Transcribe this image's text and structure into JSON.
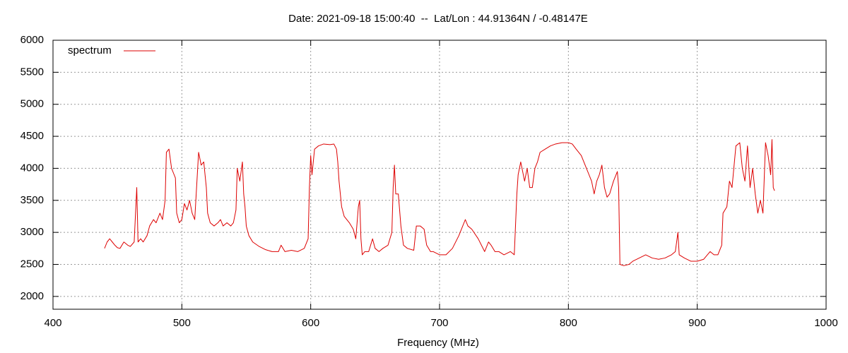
{
  "chart_data": {
    "type": "line",
    "title": "Date: 2021-09-18 15:00:40  --  Lat/Lon : 44.91364N / -0.48147E",
    "x_label": "Frequency (MHz)",
    "xlim": [
      400,
      1000
    ],
    "xticks": [
      400,
      500,
      600,
      700,
      800,
      900,
      1000
    ],
    "ylim": [
      1800,
      6000
    ],
    "yticks": [
      2000,
      2500,
      3000,
      3500,
      4000,
      4500,
      5000,
      5500,
      6000
    ],
    "grid": true,
    "legend": "top left",
    "x": [
      440,
      442,
      444,
      446,
      448,
      450,
      452,
      455,
      458,
      460,
      463,
      465,
      466,
      468,
      470,
      473,
      475,
      478,
      480,
      483,
      485,
      487,
      488,
      490,
      492,
      494,
      495,
      496,
      498,
      500,
      502,
      504,
      506,
      508,
      510,
      512,
      513,
      515,
      517,
      518,
      519,
      520,
      522,
      525,
      528,
      530,
      532,
      535,
      538,
      540,
      542,
      543,
      545,
      547,
      548,
      549,
      550,
      552,
      555,
      560,
      565,
      570,
      575,
      577,
      580,
      585,
      590,
      595,
      598,
      599,
      600,
      601,
      603,
      606,
      610,
      615,
      618,
      620,
      621,
      622,
      624,
      626,
      630,
      633,
      635,
      637,
      638,
      639,
      640,
      642,
      645,
      648,
      650,
      653,
      656,
      660,
      663,
      664,
      665,
      666,
      668,
      670,
      672,
      675,
      680,
      682,
      685,
      688,
      690,
      693,
      695,
      700,
      705,
      710,
      715,
      718,
      720,
      722,
      725,
      730,
      735,
      738,
      740,
      743,
      746,
      750,
      755,
      758,
      760,
      761,
      763,
      766,
      768,
      770,
      772,
      774,
      776,
      778,
      782,
      786,
      790,
      795,
      800,
      803,
      806,
      810,
      813,
      816,
      818,
      820,
      822,
      824,
      826,
      828,
      830,
      832,
      835,
      838,
      839,
      840,
      843,
      847,
      850,
      855,
      860,
      865,
      870,
      875,
      880,
      883,
      885,
      886,
      890,
      895,
      900,
      905,
      910,
      913,
      916,
      919,
      920,
      923,
      925,
      927,
      930,
      933,
      935,
      937,
      939,
      941,
      943,
      945,
      947,
      949,
      951,
      953,
      955,
      957,
      958,
      959,
      960
    ],
    "series": [
      {
        "name": "spectrum",
        "color": "#dd0000",
        "values": [
          2750,
          2850,
          2900,
          2850,
          2800,
          2760,
          2750,
          2850,
          2800,
          2780,
          2850,
          3700,
          2850,
          2900,
          2850,
          2950,
          3100,
          3200,
          3150,
          3300,
          3200,
          3500,
          4250,
          4300,
          4000,
          3900,
          3850,
          3300,
          3150,
          3200,
          3450,
          3350,
          3500,
          3300,
          3200,
          3900,
          4250,
          4050,
          4100,
          3900,
          3700,
          3300,
          3150,
          3100,
          3150,
          3200,
          3100,
          3150,
          3100,
          3150,
          3350,
          4000,
          3800,
          4100,
          3600,
          3400,
          3100,
          2950,
          2850,
          2780,
          2730,
          2700,
          2700,
          2800,
          2700,
          2720,
          2700,
          2750,
          2900,
          3700,
          4200,
          3900,
          4300,
          4350,
          4380,
          4370,
          4380,
          4300,
          4100,
          3800,
          3400,
          3250,
          3150,
          3050,
          2900,
          3400,
          3500,
          2900,
          2650,
          2700,
          2700,
          2900,
          2750,
          2700,
          2750,
          2800,
          3000,
          3700,
          4050,
          3600,
          3600,
          3100,
          2800,
          2750,
          2720,
          3100,
          3100,
          3050,
          2800,
          2700,
          2700,
          2650,
          2650,
          2750,
          2950,
          3100,
          3200,
          3100,
          3050,
          2900,
          2700,
          2850,
          2800,
          2700,
          2700,
          2650,
          2700,
          2650,
          3600,
          3900,
          4100,
          3800,
          4000,
          3700,
          3700,
          4000,
          4100,
          4250,
          4300,
          4350,
          4380,
          4400,
          4400,
          4380,
          4300,
          4200,
          4050,
          3900,
          3800,
          3600,
          3800,
          3900,
          4050,
          3700,
          3550,
          3600,
          3800,
          3950,
          3700,
          2500,
          2480,
          2500,
          2550,
          2600,
          2650,
          2600,
          2580,
          2600,
          2650,
          2700,
          3000,
          2650,
          2600,
          2550,
          2550,
          2580,
          2700,
          2650,
          2650,
          2800,
          3300,
          3400,
          3800,
          3700,
          4350,
          4400,
          4000,
          3800,
          4350,
          3700,
          4000,
          3600,
          3300,
          3500,
          3300,
          4400,
          4200,
          3900,
          4450,
          3700,
          3650
        ]
      }
    ]
  }
}
